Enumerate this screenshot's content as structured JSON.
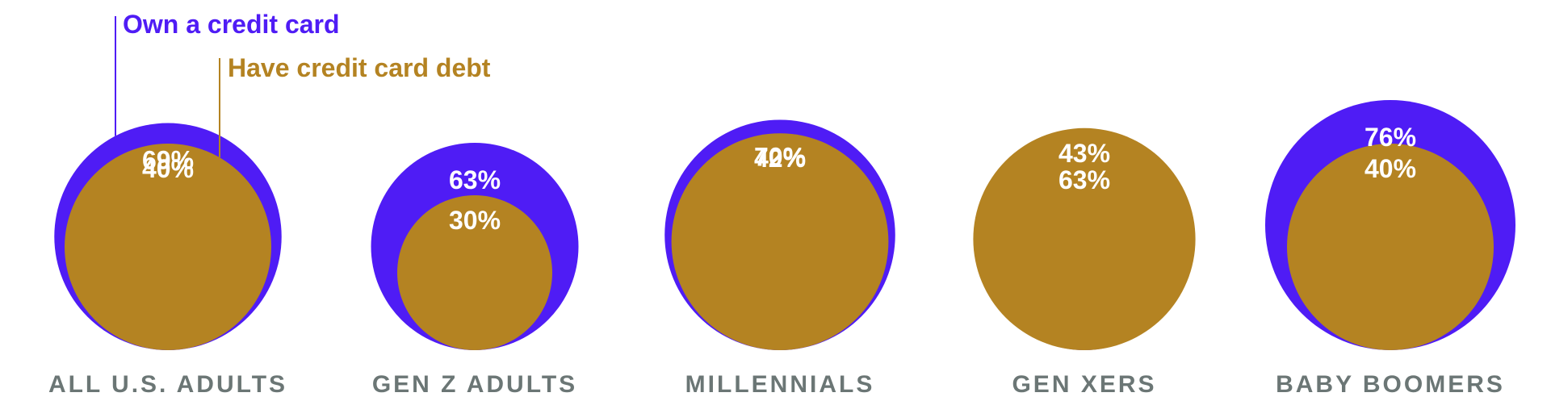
{
  "colors": {
    "own": "#4f1cf5",
    "debt": "#b48322",
    "category": "#6b7675",
    "label": "#ffffff"
  },
  "chart_data": {
    "type": "bubble",
    "title": "",
    "categories": [
      "ALL U.S. ADULTS",
      "GEN Z ADULTS",
      "MILLENNIALS",
      "GEN XERS",
      "BABY BOOMERS"
    ],
    "series": [
      {
        "name": "Own a credit card",
        "values": [
          69,
          63,
          70,
          63,
          76
        ],
        "labels": [
          "69%",
          "63%",
          "70%",
          "63%",
          "76%"
        ]
      },
      {
        "name": "Have credit card debt",
        "values": [
          40,
          30,
          42,
          43,
          40
        ],
        "labels": [
          "40%",
          "30%",
          "42%",
          "43%",
          "40%"
        ]
      }
    ],
    "unit": "%",
    "legend": "top-left"
  }
}
